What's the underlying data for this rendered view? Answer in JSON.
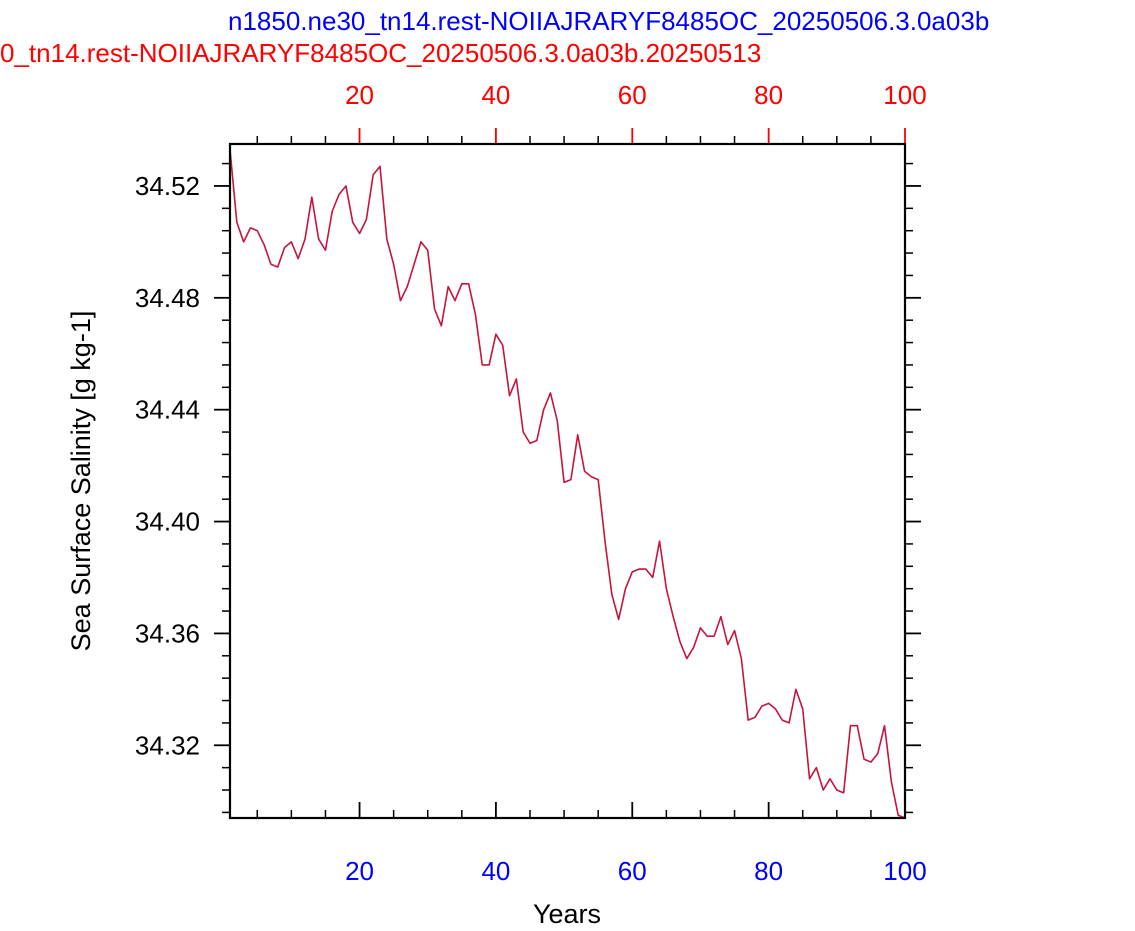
{
  "chart_data": {
    "type": "line",
    "title_blue": "n1850.ne30_tn14.rest-NOIIAJRARYF8485OC_20250506.3.0a03b",
    "title_red": "0_tn14.rest-NOIIAJRARYF8485OC_20250506.3.0a03b.20250513",
    "xlabel": "Years",
    "ylabel": "Sea Surface Salinity [g kg-1]",
    "xlim": [
      1,
      100
    ],
    "ylim": [
      34.294,
      34.535
    ],
    "x_ticks": [
      20,
      40,
      60,
      80,
      100
    ],
    "x_minor_step": 5,
    "y_ticks": [
      34.32,
      34.36,
      34.4,
      34.44,
      34.48,
      34.52
    ],
    "y_tick_labels": [
      "34.32",
      "34.36",
      "34.40",
      "34.44",
      "34.48",
      "34.52"
    ],
    "y_minor_step": 0.008,
    "top_axis_ticks": [
      20,
      40,
      60,
      80,
      100
    ],
    "bottom_axis_color": "#0000ff",
    "top_axis_color": "#ff0000",
    "grid": false,
    "legend": "none",
    "series": [
      {
        "color": "#c8143c",
        "x": [
          1,
          2,
          3,
          4,
          5,
          6,
          7,
          8,
          9,
          10,
          11,
          12,
          13,
          14,
          15,
          16,
          17,
          18,
          19,
          20,
          21,
          22,
          23,
          24,
          25,
          26,
          27,
          28,
          29,
          30,
          31,
          32,
          33,
          34,
          35,
          36,
          37,
          38,
          39,
          40,
          41,
          42,
          43,
          44,
          45,
          46,
          47,
          48,
          49,
          50,
          51,
          52,
          53,
          54,
          55,
          56,
          57,
          58,
          59,
          60,
          61,
          62,
          63,
          64,
          65,
          66,
          67,
          68,
          69,
          70,
          71,
          72,
          73,
          74,
          75,
          76,
          77,
          78,
          79,
          80,
          81,
          82,
          83,
          84,
          85,
          86,
          87,
          88,
          89,
          90,
          91,
          92,
          93,
          94,
          95,
          96,
          97,
          98,
          99,
          100
        ],
        "values": [
          34.533,
          34.507,
          34.5,
          34.505,
          34.504,
          34.499,
          34.492,
          34.491,
          34.498,
          34.5,
          34.494,
          34.501,
          34.516,
          34.501,
          34.497,
          34.511,
          34.517,
          34.52,
          34.507,
          34.503,
          34.508,
          34.524,
          34.527,
          34.501,
          34.492,
          34.479,
          34.484,
          34.492,
          34.5,
          34.497,
          34.476,
          34.47,
          34.484,
          34.479,
          34.485,
          34.485,
          34.474,
          34.456,
          34.456,
          34.467,
          34.463,
          34.445,
          34.451,
          34.432,
          34.428,
          34.429,
          34.44,
          34.446,
          34.436,
          34.414,
          34.415,
          34.431,
          34.418,
          34.416,
          34.415,
          34.393,
          34.374,
          34.365,
          34.376,
          34.382,
          34.383,
          34.383,
          34.38,
          34.393,
          34.376,
          34.366,
          34.357,
          34.351,
          34.355,
          34.362,
          34.359,
          34.359,
          34.366,
          34.356,
          34.361,
          34.351,
          34.329,
          34.33,
          34.334,
          34.335,
          34.333,
          34.329,
          34.328,
          34.34,
          34.333,
          34.308,
          34.312,
          34.304,
          34.308,
          34.304,
          34.303,
          34.327,
          34.327,
          34.315,
          34.314,
          34.317,
          34.327,
          34.307,
          34.295,
          34.294
        ]
      }
    ]
  }
}
